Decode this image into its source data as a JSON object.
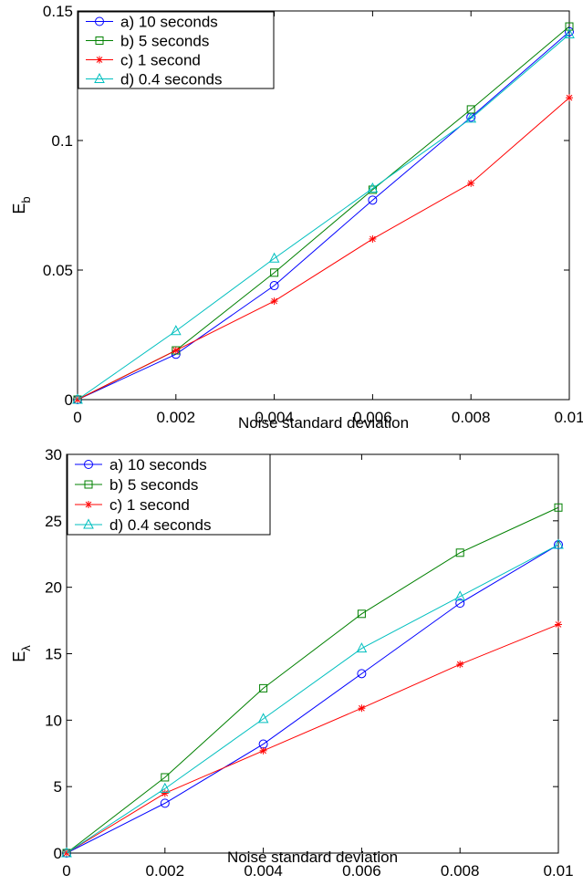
{
  "chart_data": [
    {
      "type": "line",
      "xlabel": "Noise standard deviation",
      "ylabel_main": "E",
      "ylabel_sub": "b",
      "x": [
        0,
        0.002,
        0.004,
        0.006,
        0.008,
        0.01
      ],
      "xlim": [
        0,
        0.01
      ],
      "ylim": [
        0,
        0.15
      ],
      "xticks": [
        "0",
        "0.002",
        "0.004",
        "0.006",
        "0.008",
        "0.01"
      ],
      "yticks": [
        "0",
        "0.05",
        "0.1",
        "0.15"
      ],
      "grid": false,
      "legend_position": "top-left",
      "series": [
        {
          "name": "a) 10 seconds",
          "color": "#0000ff",
          "marker": "circle",
          "values": [
            0,
            0.0175,
            0.044,
            0.077,
            0.109,
            0.142
          ]
        },
        {
          "name": "b) 5 seconds",
          "color": "#008000",
          "marker": "square",
          "values": [
            0,
            0.019,
            0.049,
            0.081,
            0.112,
            0.144
          ]
        },
        {
          "name": "c) 1 second",
          "color": "#ff0000",
          "marker": "star",
          "values": [
            0,
            0.019,
            0.038,
            0.062,
            0.0835,
            0.1165
          ]
        },
        {
          "name": "d) 0.4 seconds",
          "color": "#00bfbf",
          "marker": "triangle",
          "values": [
            0,
            0.0265,
            0.0545,
            0.0815,
            0.1085,
            0.141
          ]
        }
      ]
    },
    {
      "type": "line",
      "xlabel": "Noise standard deviation",
      "ylabel_main": "E",
      "ylabel_sub": "λ",
      "x": [
        0,
        0.002,
        0.004,
        0.006,
        0.008,
        0.01
      ],
      "xlim": [
        0,
        0.01
      ],
      "ylim": [
        0,
        30
      ],
      "xticks": [
        "0",
        "0.002",
        "0.004",
        "0.006",
        "0.008",
        "0.01"
      ],
      "yticks": [
        "0",
        "5",
        "10",
        "15",
        "20",
        "25",
        "30"
      ],
      "grid": false,
      "legend_position": "top-left",
      "series": [
        {
          "name": "a) 10 seconds",
          "color": "#0000ff",
          "marker": "circle",
          "values": [
            0,
            3.75,
            8.2,
            13.5,
            18.8,
            23.2
          ]
        },
        {
          "name": "b) 5 seconds",
          "color": "#008000",
          "marker": "square",
          "values": [
            0,
            5.7,
            12.4,
            18.0,
            22.6,
            26.0
          ]
        },
        {
          "name": "c) 1 second",
          "color": "#ff0000",
          "marker": "star",
          "values": [
            0,
            4.5,
            7.7,
            10.9,
            14.2,
            17.2
          ]
        },
        {
          "name": "d) 0.4 seconds",
          "color": "#00bfbf",
          "marker": "triangle",
          "values": [
            0,
            4.85,
            10.1,
            15.4,
            19.3,
            23.2
          ]
        }
      ]
    }
  ]
}
